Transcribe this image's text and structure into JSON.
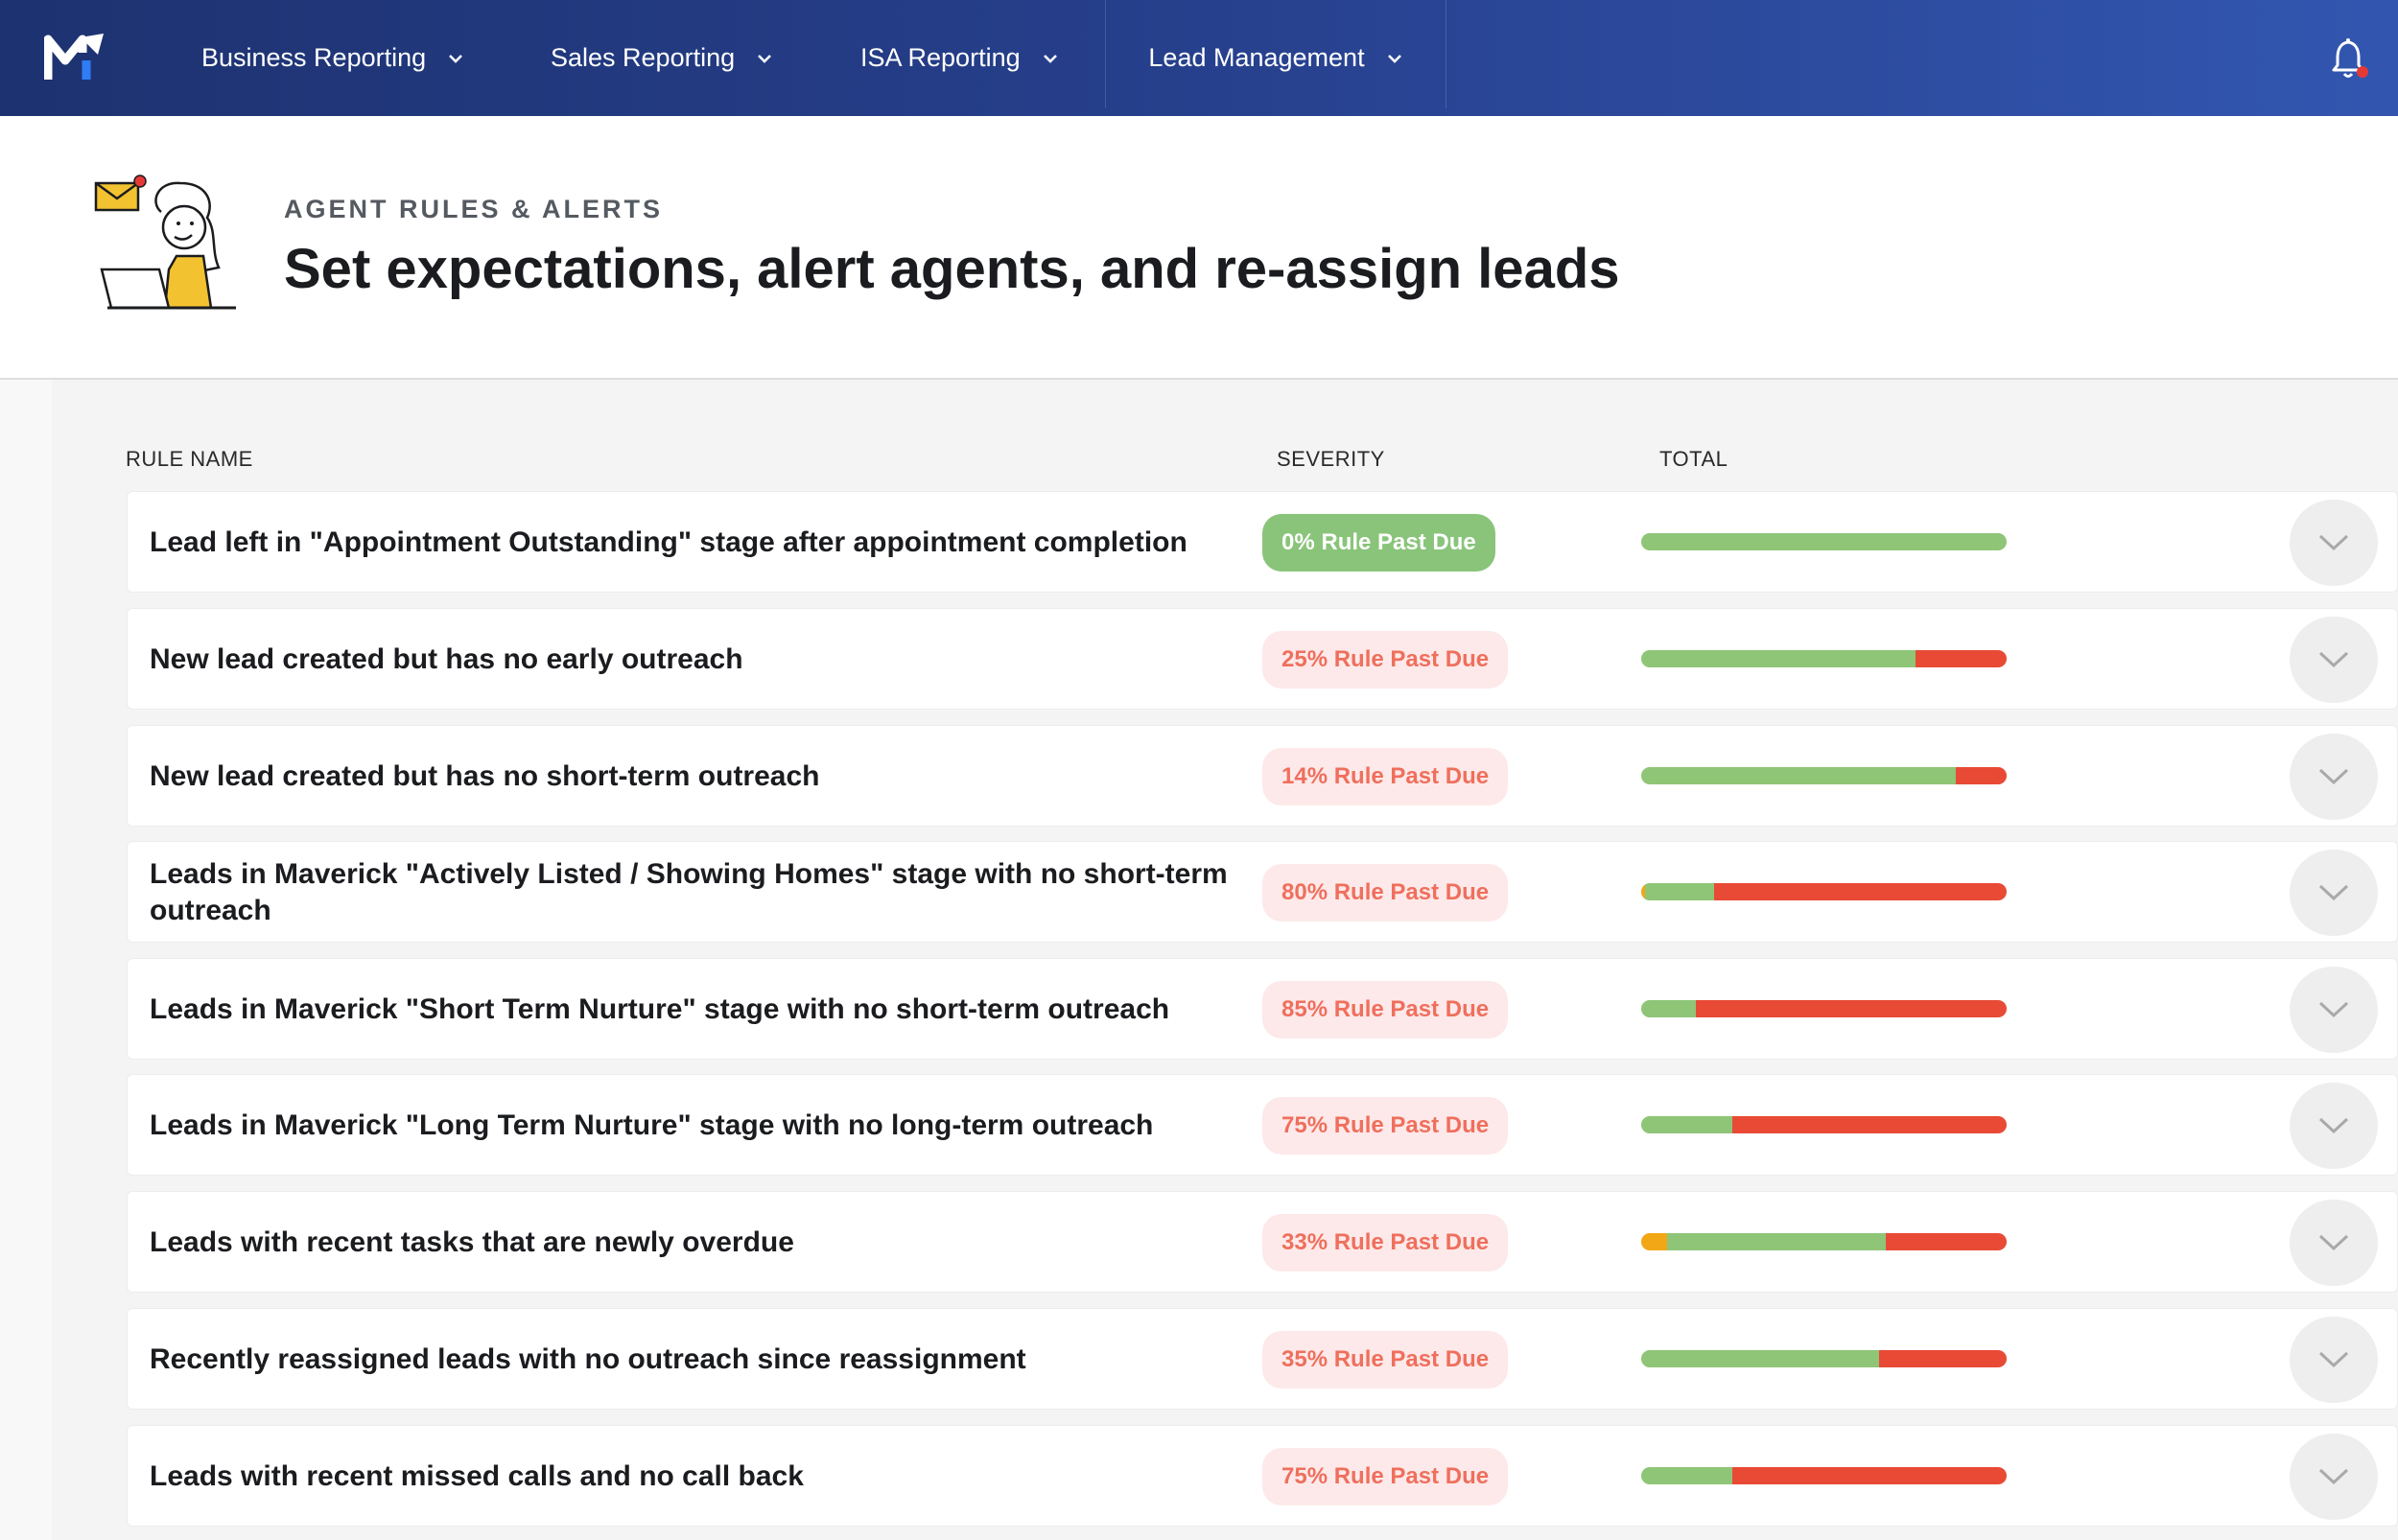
{
  "nav": {
    "items": [
      {
        "label": "Business Reporting"
      },
      {
        "label": "Sales Reporting"
      },
      {
        "label": "ISA Reporting"
      },
      {
        "label": "Lead Management"
      }
    ],
    "active": "Lead Management"
  },
  "header": {
    "eyebrow": "AGENT RULES & ALERTS",
    "title": "Set expectations, alert agents, and re-assign leads"
  },
  "table": {
    "columns": {
      "rule_name": "RULE NAME",
      "severity": "SEVERITY",
      "total": "TOTAL"
    },
    "rows": [
      {
        "name": "Lead left in \"Appointment Outstanding\" stage after appointment completion",
        "severity": "0% Rule Past Due",
        "status": "ok",
        "bar": {
          "yellow": 0,
          "green": 100,
          "red": 0
        }
      },
      {
        "name": "New lead created but has no early outreach",
        "severity": "25% Rule Past Due",
        "status": "alert",
        "bar": {
          "yellow": 0,
          "green": 75,
          "red": 25
        }
      },
      {
        "name": "New lead created but has no short-term outreach",
        "severity": "14% Rule Past Due",
        "status": "alert",
        "bar": {
          "yellow": 0,
          "green": 86,
          "red": 14
        }
      },
      {
        "name": "Leads in Maverick \"Actively Listed / Showing Homes\" stage with no short-term outreach",
        "severity": "80% Rule Past Due",
        "status": "alert",
        "bar": {
          "yellow": 1,
          "green": 19,
          "red": 80
        }
      },
      {
        "name": "Leads in Maverick \"Short Term Nurture\" stage with no short-term outreach",
        "severity": "85% Rule Past Due",
        "status": "alert",
        "bar": {
          "yellow": 0,
          "green": 15,
          "red": 85
        }
      },
      {
        "name": "Leads in Maverick \"Long Term Nurture\" stage with no long-term outreach",
        "severity": "75% Rule Past Due",
        "status": "alert",
        "bar": {
          "yellow": 0,
          "green": 25,
          "red": 75
        }
      },
      {
        "name": "Leads with recent tasks that are newly overdue",
        "severity": "33% Rule Past Due",
        "status": "alert",
        "bar": {
          "yellow": 7,
          "green": 60,
          "red": 33
        }
      },
      {
        "name": "Recently reassigned leads with no outreach since reassignment",
        "severity": "35% Rule Past Due",
        "status": "alert",
        "bar": {
          "yellow": 0,
          "green": 65,
          "red": 35
        }
      },
      {
        "name": "Leads with recent missed calls and no call back",
        "severity": "75% Rule Past Due",
        "status": "alert",
        "bar": {
          "yellow": 0,
          "green": 25,
          "red": 75
        }
      }
    ]
  },
  "colors": {
    "nav_start": "#1d3270",
    "nav_end": "#3256b0",
    "green": "#8fc577",
    "red": "#e84a35",
    "yellow": "#f1a716",
    "active_tab": "#2f7cf6"
  },
  "icons": {
    "logo": "maverick-logo",
    "notifications": "bell-icon",
    "expand": "chevron-down-icon"
  }
}
